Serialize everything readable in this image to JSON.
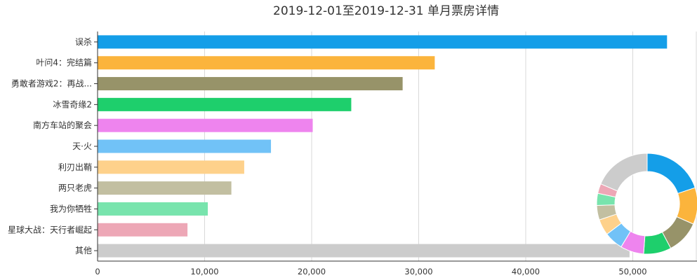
{
  "chart_data": [
    {
      "type": "bar",
      "orientation": "horizontal",
      "title": "2019-12-01至2019-12-31 单月票房详情",
      "xlabel": "",
      "ylabel": "",
      "categories": [
        "误杀",
        "叶问4：完结篇",
        "勇敢者游戏2：再战...",
        "冰雪奇缘2",
        "南方车站的聚会",
        "天·火",
        "利刃出鞘",
        "两只老虎",
        "我为你牺牲",
        "星球大战：天行者崛起",
        "其他"
      ],
      "values": [
        53200,
        31500,
        28500,
        23700,
        20100,
        16200,
        13700,
        12500,
        10300,
        8400,
        49700
      ],
      "colors": [
        "#149ee8",
        "#fbb43c",
        "#979369",
        "#1ecf6c",
        "#ee84ee",
        "#71c2f7",
        "#fed18b",
        "#c2bfa1",
        "#78e4ad",
        "#eda7b6",
        "#cccccc"
      ],
      "xlim": [
        0,
        56000
      ],
      "xticks": [
        0,
        10000,
        20000,
        30000,
        40000,
        50000
      ],
      "xtick_labels": [
        "0",
        "10,000",
        "20,000",
        "30,000",
        "40,000",
        "50,000"
      ],
      "grid": true
    },
    {
      "type": "pie",
      "style": "donut",
      "categories": [
        "误杀",
        "叶问4：完结篇",
        "勇敢者游戏2：再战...",
        "冰雪奇缘2",
        "南方车站的聚会",
        "天·火",
        "利刃出鞘",
        "两只老虎",
        "我为你牺牲",
        "星球大战：天行者崛起",
        "其他"
      ],
      "values": [
        53200,
        31500,
        28500,
        23700,
        20100,
        16200,
        13700,
        12500,
        10300,
        8400,
        49700
      ],
      "colors": [
        "#149ee8",
        "#fbb43c",
        "#979369",
        "#1ecf6c",
        "#ee84ee",
        "#71c2f7",
        "#fed18b",
        "#c2bfa1",
        "#78e4ad",
        "#eda7b6",
        "#cccccc"
      ],
      "placement": "bottom-right"
    }
  ]
}
